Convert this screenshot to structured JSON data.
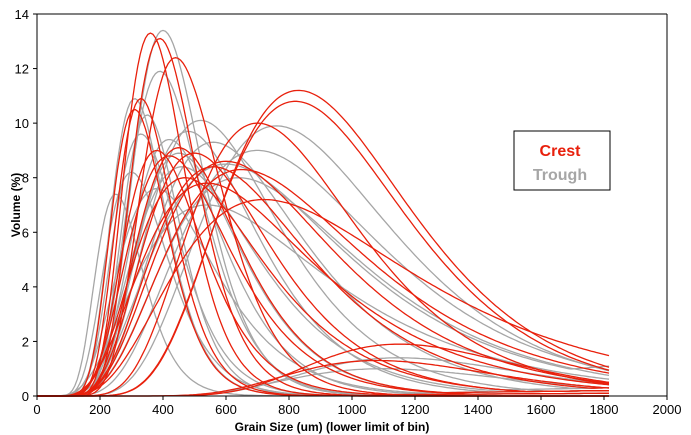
{
  "chart_data": {
    "type": "line",
    "title": "",
    "xlabel": "Grain Size (um) (lower limit of bin)",
    "ylabel": "Volume (%)",
    "xlim": [
      0,
      2000
    ],
    "ylim": [
      0,
      14
    ],
    "x_ticks": [
      "0",
      "200",
      "400",
      "600",
      "800",
      "1000",
      "1200",
      "1400",
      "1600",
      "1800",
      "2000"
    ],
    "y_ticks": [
      "0",
      "2",
      "4",
      "6",
      "8",
      "10",
      "12",
      "14"
    ],
    "grid": false,
    "legend_position": "right",
    "colors": {
      "Crest": "#e8200c",
      "Trough": "#a6a6a6"
    },
    "legend": [
      {
        "label": "Crest",
        "color": "#e8200c"
      },
      {
        "label": "Trough",
        "color": "#a6a6a6"
      }
    ],
    "series": [
      {
        "name": "Trough",
        "peak_x": 310,
        "peak_y": 10.9,
        "sigma": 0.28,
        "tail_end_y": 0.0
      },
      {
        "name": "Trough",
        "peak_x": 400,
        "peak_y": 13.4,
        "sigma": 0.28,
        "tail_end_y": 0.0
      },
      {
        "name": "Trough",
        "peak_x": 390,
        "peak_y": 11.9,
        "sigma": 0.3,
        "tail_end_y": 0.0
      },
      {
        "name": "Trough",
        "peak_x": 350,
        "peak_y": 10.3,
        "sigma": 0.26,
        "tail_end_y": 0.0
      },
      {
        "name": "Trough",
        "peak_x": 420,
        "peak_y": 9.4,
        "sigma": 0.34,
        "tail_end_y": 0.1
      },
      {
        "name": "Trough",
        "peak_x": 520,
        "peak_y": 10.1,
        "sigma": 0.4,
        "tail_end_y": 0.2
      },
      {
        "name": "Trough",
        "peak_x": 480,
        "peak_y": 9.7,
        "sigma": 0.38,
        "tail_end_y": 0.2
      },
      {
        "name": "Trough",
        "peak_x": 560,
        "peak_y": 9.3,
        "sigma": 0.42,
        "tail_end_y": 0.3
      },
      {
        "name": "Trough",
        "peak_x": 760,
        "peak_y": 9.9,
        "sigma": 0.4,
        "tail_end_y": 0.3
      },
      {
        "name": "Trough",
        "peak_x": 700,
        "peak_y": 9.0,
        "sigma": 0.45,
        "tail_end_y": 0.4
      },
      {
        "name": "Trough",
        "peak_x": 600,
        "peak_y": 8.5,
        "sigma": 0.5,
        "tail_end_y": 1.1
      },
      {
        "name": "Trough",
        "peak_x": 640,
        "peak_y": 8.0,
        "sigma": 0.48,
        "tail_end_y": 0.6
      },
      {
        "name": "Trough",
        "peak_x": 450,
        "peak_y": 8.9,
        "sigma": 0.36,
        "tail_end_y": 0.2
      },
      {
        "name": "Trough",
        "peak_x": 300,
        "peak_y": 8.2,
        "sigma": 0.33,
        "tail_end_y": 0.0
      },
      {
        "name": "Trough",
        "peak_x": 380,
        "peak_y": 7.6,
        "sigma": 0.4,
        "tail_end_y": 0.2
      },
      {
        "name": "Trough",
        "peak_x": 540,
        "peak_y": 7.0,
        "sigma": 0.55,
        "tail_end_y": 0.5
      },
      {
        "name": "Trough",
        "peak_x": 460,
        "peak_y": 8.4,
        "sigma": 0.42,
        "tail_end_y": 0.3
      },
      {
        "name": "Trough",
        "peak_x": 330,
        "peak_y": 9.6,
        "sigma": 0.31,
        "tail_end_y": 0.1
      },
      {
        "name": "Trough",
        "peak_x": 250,
        "peak_y": 7.4,
        "sigma": 0.3,
        "tail_end_y": 0.0
      },
      {
        "name": "Trough",
        "peak_x": 1150,
        "peak_y": 1.4,
        "sigma": 0.3,
        "tail_end_y": 0.0
      },
      {
        "name": "Trough",
        "peak_x": 1100,
        "peak_y": 1.0,
        "sigma": 0.32,
        "tail_end_y": 0.0
      },
      {
        "name": "Crest",
        "peak_x": 360,
        "peak_y": 13.3,
        "sigma": 0.27,
        "tail_end_y": 0.0
      },
      {
        "name": "Crest",
        "peak_x": 390,
        "peak_y": 13.1,
        "sigma": 0.27,
        "tail_end_y": 0.0
      },
      {
        "name": "Crest",
        "peak_x": 440,
        "peak_y": 12.4,
        "sigma": 0.29,
        "tail_end_y": 0.0
      },
      {
        "name": "Crest",
        "peak_x": 330,
        "peak_y": 10.9,
        "sigma": 0.27,
        "tail_end_y": 0.0
      },
      {
        "name": "Crest",
        "peak_x": 310,
        "peak_y": 10.5,
        "sigma": 0.28,
        "tail_end_y": 0.0
      },
      {
        "name": "Crest",
        "peak_x": 830,
        "peak_y": 11.2,
        "sigma": 0.36,
        "tail_end_y": 0.2
      },
      {
        "name": "Crest",
        "peak_x": 820,
        "peak_y": 10.8,
        "sigma": 0.36,
        "tail_end_y": 0.2
      },
      {
        "name": "Crest",
        "peak_x": 700,
        "peak_y": 10.0,
        "sigma": 0.38,
        "tail_end_y": 0.2
      },
      {
        "name": "Crest",
        "peak_x": 450,
        "peak_y": 9.1,
        "sigma": 0.36,
        "tail_end_y": 0.1
      },
      {
        "name": "Crest",
        "peak_x": 420,
        "peak_y": 8.8,
        "sigma": 0.38,
        "tail_end_y": 0.2
      },
      {
        "name": "Crest",
        "peak_x": 600,
        "peak_y": 8.6,
        "sigma": 0.46,
        "tail_end_y": 0.3
      },
      {
        "name": "Crest",
        "peak_x": 560,
        "peak_y": 8.4,
        "sigma": 0.44,
        "tail_end_y": 0.3
      },
      {
        "name": "Crest",
        "peak_x": 650,
        "peak_y": 8.3,
        "sigma": 0.48,
        "tail_end_y": 0.3
      },
      {
        "name": "Crest",
        "peak_x": 500,
        "peak_y": 8.9,
        "sigma": 0.4,
        "tail_end_y": 0.2
      },
      {
        "name": "Crest",
        "peak_x": 380,
        "peak_y": 9.0,
        "sigma": 0.33,
        "tail_end_y": 0.1
      },
      {
        "name": "Crest",
        "peak_x": 470,
        "peak_y": 8.0,
        "sigma": 0.43,
        "tail_end_y": 0.2
      },
      {
        "name": "Crest",
        "peak_x": 540,
        "peak_y": 7.8,
        "sigma": 0.5,
        "tail_end_y": 0.3
      },
      {
        "name": "Crest",
        "peak_x": 720,
        "peak_y": 7.2,
        "sigma": 0.52,
        "tail_end_y": 0.3
      },
      {
        "name": "Crest",
        "peak_x": 1150,
        "peak_y": 1.9,
        "sigma": 0.28,
        "tail_end_y": 0.0
      },
      {
        "name": "Crest",
        "peak_x": 1080,
        "peak_y": 1.3,
        "sigma": 0.3,
        "tail_end_y": 0.0
      }
    ]
  }
}
